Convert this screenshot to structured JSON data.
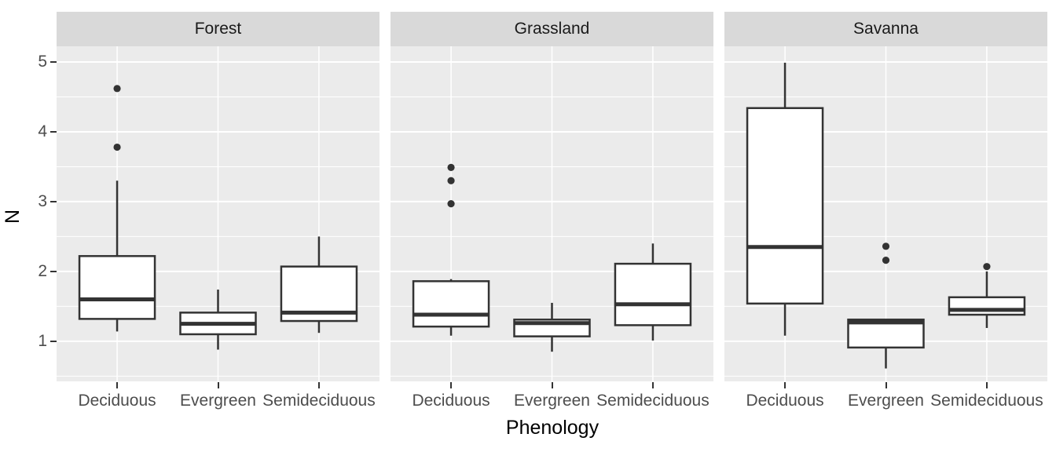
{
  "figure": {
    "kind": "faceted-boxplot",
    "background": "#ffffff"
  },
  "chart_data": {
    "type": "boxplot",
    "title": "",
    "xlabel": "Phenology",
    "ylabel": "N",
    "categories": [
      "Deciduous",
      "Evergreen",
      "Semideciduous"
    ],
    "y_axis": {
      "ticks": [
        5,
        4,
        3,
        2,
        1
      ],
      "tick_labels": [
        "5",
        "4",
        "3",
        "2",
        "1"
      ],
      "range_shown": [
        0.43,
        5.22
      ],
      "major_grid_step": 1,
      "minor_grid_step": 0.5
    },
    "facets": [
      {
        "label": "Forest",
        "boxes": [
          {
            "category": "Deciduous",
            "whisker_low": 1.14,
            "q1": 1.32,
            "median": 1.6,
            "q3": 2.22,
            "whisker_high": 3.3,
            "outliers": [
              3.78,
              4.62
            ]
          },
          {
            "category": "Evergreen",
            "whisker_low": 0.88,
            "q1": 1.1,
            "median": 1.25,
            "q3": 1.41,
            "whisker_high": 1.74,
            "outliers": []
          },
          {
            "category": "Semideciduous",
            "whisker_low": 1.12,
            "q1": 1.29,
            "median": 1.41,
            "q3": 2.07,
            "whisker_high": 2.5,
            "outliers": []
          }
        ]
      },
      {
        "label": "Grassland",
        "boxes": [
          {
            "category": "Deciduous",
            "whisker_low": 1.08,
            "q1": 1.21,
            "median": 1.38,
            "q3": 1.86,
            "whisker_high": 1.89,
            "outliers": [
              2.97,
              3.3,
              3.49
            ]
          },
          {
            "category": "Evergreen",
            "whisker_low": 0.85,
            "q1": 1.07,
            "median": 1.26,
            "q3": 1.31,
            "whisker_high": 1.55,
            "outliers": []
          },
          {
            "category": "Semideciduous",
            "whisker_low": 1.01,
            "q1": 1.23,
            "median": 1.53,
            "q3": 2.11,
            "whisker_high": 2.4,
            "outliers": []
          }
        ]
      },
      {
        "label": "Savanna",
        "boxes": [
          {
            "category": "Deciduous",
            "whisker_low": 1.08,
            "q1": 1.54,
            "median": 2.35,
            "q3": 4.34,
            "whisker_high": 4.99,
            "outliers": []
          },
          {
            "category": "Evergreen",
            "whisker_low": 0.61,
            "q1": 0.91,
            "median": 1.27,
            "q3": 1.31,
            "whisker_high": 1.32,
            "outliers": [
              2.16,
              2.36
            ]
          },
          {
            "category": "Semideciduous",
            "whisker_low": 1.19,
            "q1": 1.38,
            "median": 1.45,
            "q3": 1.63,
            "whisker_high": 2.0,
            "outliers": [
              2.07
            ]
          }
        ]
      }
    ],
    "legend": null,
    "grid": "on",
    "colors": {
      "panel_background": "#ebebeb",
      "strip_background": "#d9d9d9",
      "grid": "#ffffff",
      "box_stroke": "#333333",
      "box_fill": "#ffffff",
      "outlier": "#333333",
      "axis_text": "#4d4d4d",
      "title_text": "#000000"
    }
  }
}
